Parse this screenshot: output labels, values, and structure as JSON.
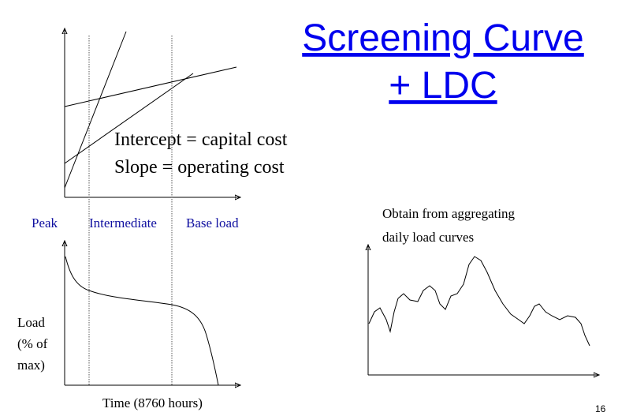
{
  "title": {
    "line1": "Screening Curve",
    "line2": "+ LDC"
  },
  "screening": {
    "intercept_note": "Intercept = capital cost",
    "slope_note": "Slope = operating cost",
    "regions": [
      "Peak",
      "Intermediate",
      "Base load"
    ]
  },
  "ldc": {
    "y_label": [
      "Load",
      "(% of",
      "max)"
    ],
    "x_label": "Time (8760 hours)"
  },
  "daily": {
    "note": [
      "Obtain from aggregating",
      "daily load curves"
    ]
  },
  "page_number": "16"
}
